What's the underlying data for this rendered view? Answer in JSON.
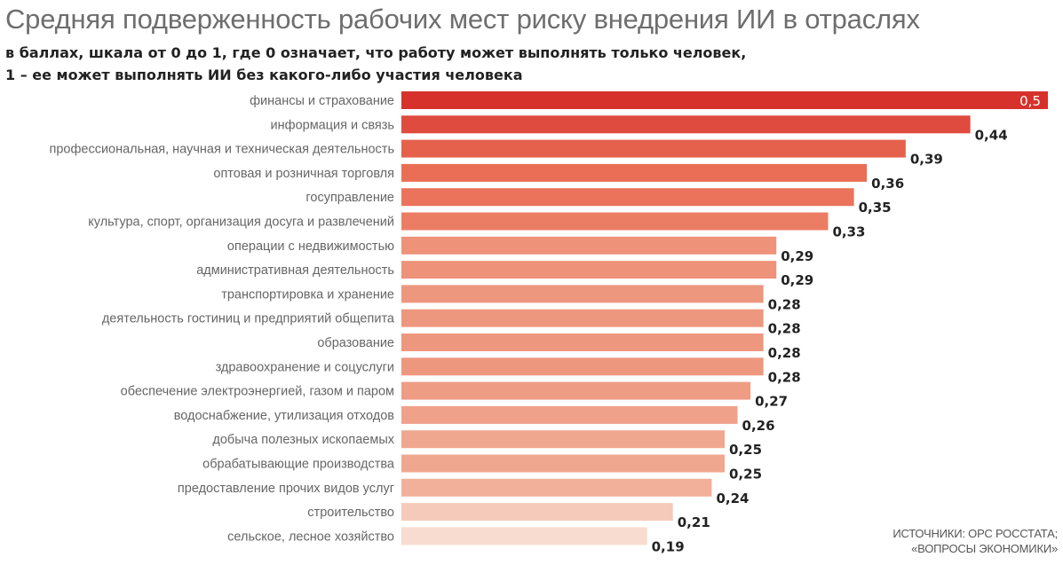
{
  "title": "Средняя подверженность рабочих мест риску внедрения ИИ в отраслях",
  "subtitle_line1": "в баллах, шкала от 0 до 1, где 0 означает, что работу может выполнять только человек,",
  "subtitle_line2": "1 – ее может выполнять ИИ без какого-либо участия человека",
  "source_line1": "ИСТОЧНИКИ: ОРС РОССТАТА;",
  "source_line2": "«ВОПРОСЫ ЭКОНОМИКИ»",
  "chart_data": {
    "type": "bar",
    "orientation": "horizontal",
    "title": "Средняя подверженность рабочих мест риску внедрения ИИ в отраслях",
    "subtitle": "в баллах, шкала от 0 до 1, где 0 означает, что работу может выполнять только человек, 1 – ее может выполнять ИИ без какого-либо участия человека",
    "xlabel": "",
    "ylabel": "",
    "xlim": [
      0,
      0.5
    ],
    "grid": false,
    "legend": "none",
    "categories": [
      "финансы и страхование",
      "информация и связь",
      "профессиональная, научная и техническая деятельность",
      "оптовая и розничная торговля",
      "госуправление",
      "культура, спорт, организация досуга и развлечений",
      "операции с недвижимостью",
      "административная деятельность",
      "транспортировка и хранение",
      "деятельность гостиниц и предприятий общепита",
      "образование",
      "здравоохранение и соцуслуги",
      "обеспечение электроэнергией, газом и паром",
      "водоснабжение, утилизация отходов",
      "добыча полезных ископаемых",
      "обрабатывающие производства",
      "предоставление прочих видов услуг",
      "строительство",
      "сельское, лесное хозяйство"
    ],
    "values": [
      0.5,
      0.44,
      0.39,
      0.36,
      0.35,
      0.33,
      0.29,
      0.29,
      0.28,
      0.28,
      0.28,
      0.28,
      0.27,
      0.26,
      0.25,
      0.25,
      0.24,
      0.21,
      0.19
    ],
    "value_labels": [
      "0,5",
      "0,44",
      "0,39",
      "0,36",
      "0,35",
      "0,33",
      "0,29",
      "0,29",
      "0,28",
      "0,28",
      "0,28",
      "0,28",
      "0,27",
      "0,26",
      "0,25",
      "0,25",
      "0,24",
      "0,21",
      "0,19"
    ],
    "colors": {
      "high": "#d7312c",
      "mid": "#ea6e55",
      "low": "#f0a58e",
      "lowest": "#f8dccf",
      "label_inside": "#ffffff",
      "label_outside": "#222222"
    }
  }
}
